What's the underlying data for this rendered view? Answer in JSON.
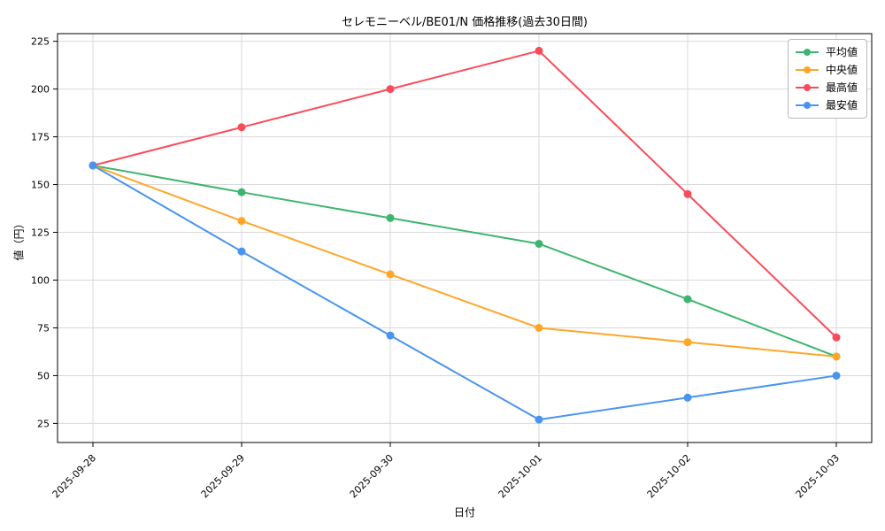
{
  "chart_data": {
    "type": "line",
    "title": "セレモニーベル/BE01/N 価格推移(過去30日間)",
    "xlabel": "日付",
    "ylabel": "値（円）",
    "categories": [
      "2025-09-28",
      "2025-09-29",
      "2025-09-30",
      "2025-10-01",
      "2025-10-02",
      "2025-10-03"
    ],
    "series": [
      {
        "name": "平均値",
        "color": "#3db56e",
        "values": [
          160,
          146,
          132.5,
          119,
          90,
          60
        ]
      },
      {
        "name": "中央値",
        "color": "#ffa629",
        "values": [
          160,
          131,
          103,
          75,
          67.5,
          60
        ]
      },
      {
        "name": "最高値",
        "color": "#fa4b5a",
        "values": [
          160,
          180,
          200,
          220,
          145,
          70
        ]
      },
      {
        "name": "最安値",
        "color": "#4a94ef",
        "values": [
          160,
          115,
          71,
          27,
          38.5,
          50
        ]
      }
    ],
    "yticks": [
      25,
      50,
      75,
      100,
      125,
      150,
      175,
      200,
      225
    ],
    "ylim": [
      15,
      229
    ],
    "grid": true,
    "grid_color": "#d9d9d9",
    "legend_position": "top-right"
  }
}
